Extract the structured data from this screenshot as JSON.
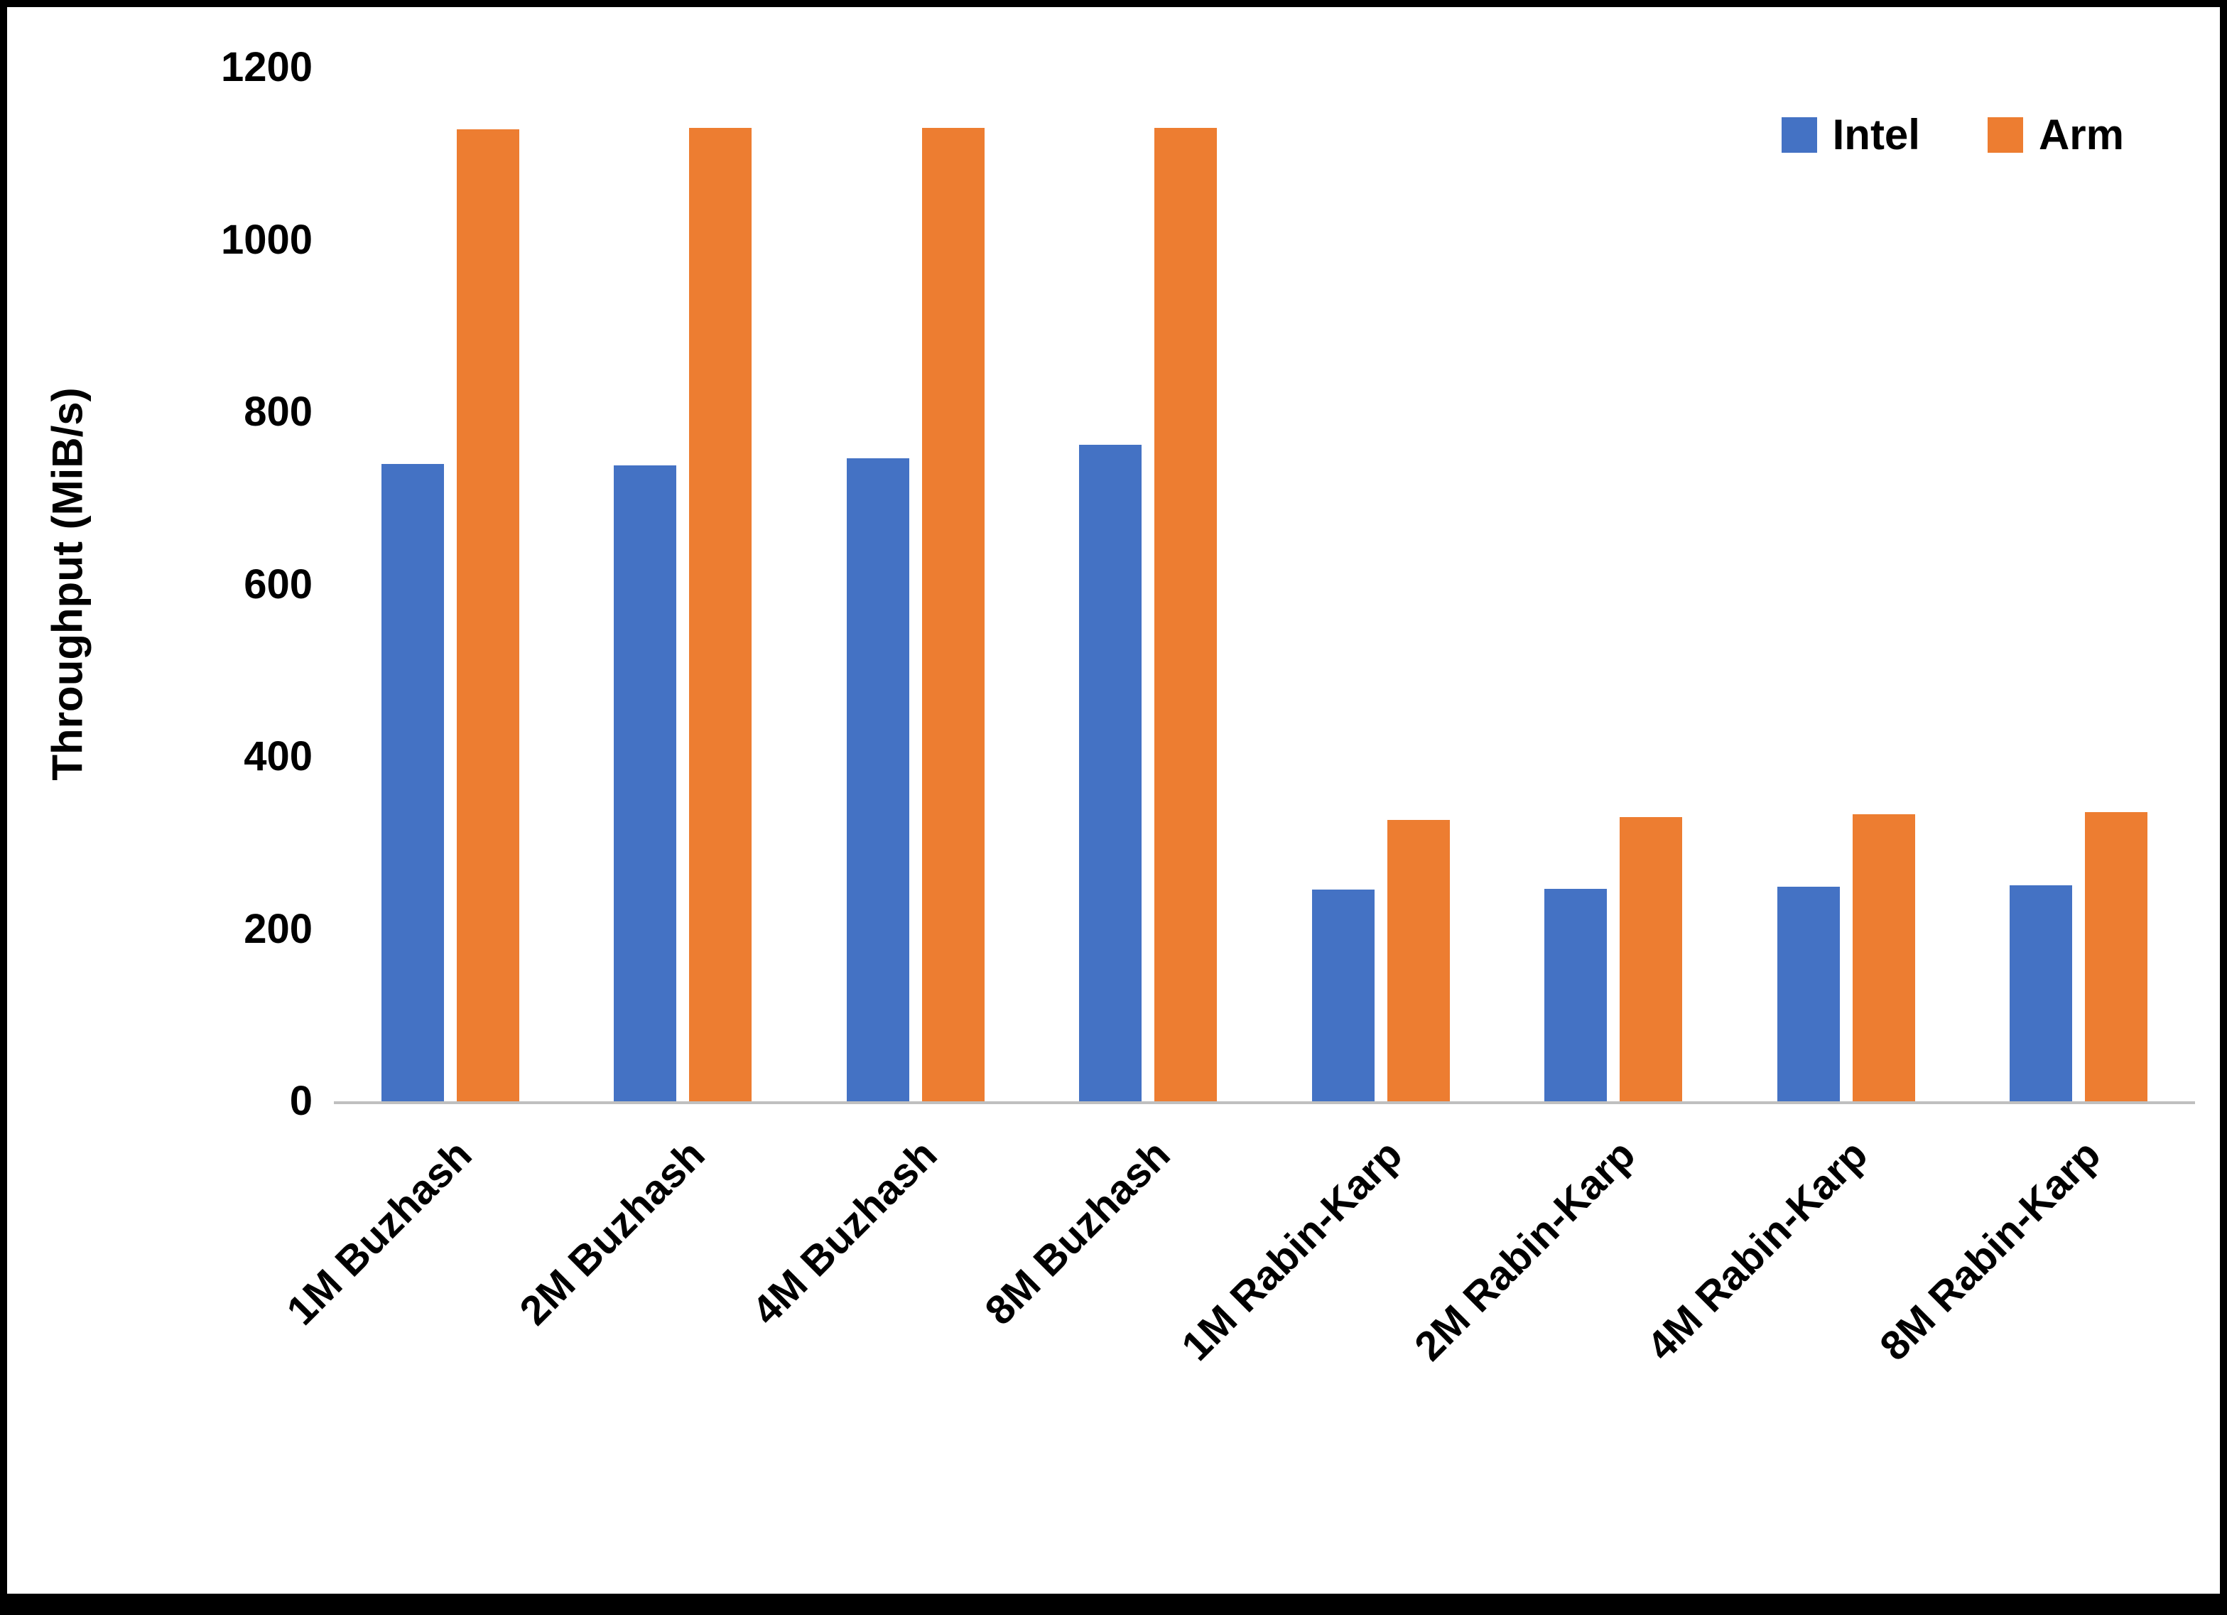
{
  "chart_data": {
    "type": "bar",
    "categories": [
      "1M Buzhash",
      "2M Buzhash",
      "4M Buzhash",
      "8M Buzhash",
      "1M Rabin-Karp",
      "2M Rabin-Karp",
      "4M Rabin-Karp",
      "8M Rabin-Karp"
    ],
    "series": [
      {
        "name": "Intel",
        "color": "#4472C4",
        "values": [
          740,
          738,
          746,
          762,
          246,
          247,
          249,
          251
        ]
      },
      {
        "name": "Arm",
        "color": "#ED7D31",
        "values": [
          1128,
          1130,
          1130,
          1130,
          327,
          330,
          333,
          336
        ]
      }
    ],
    "ylabel": "Throughput (MiB/s)",
    "ylim": [
      0,
      1200
    ],
    "yticks": [
      0,
      200,
      400,
      600,
      800,
      1000,
      1200
    ],
    "grid": false,
    "legend_position": "top-right"
  }
}
